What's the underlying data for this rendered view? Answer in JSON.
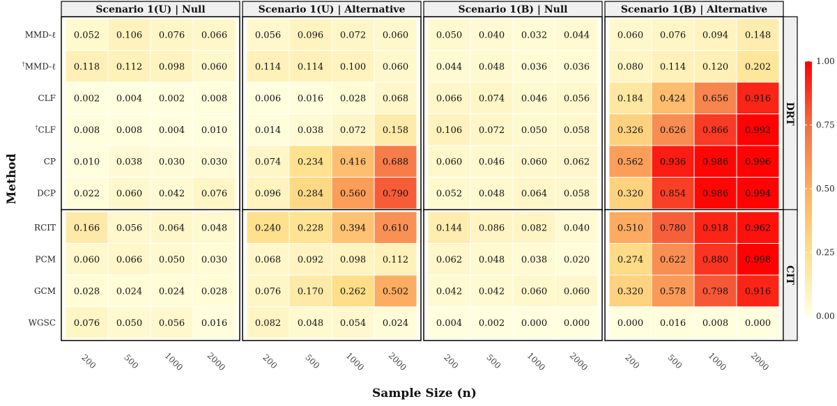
{
  "chart_data": {
    "type": "heatmap",
    "xlabel": "Sample Size (n)",
    "ylabel": "Method",
    "columns": [
      "200",
      "500",
      "1000",
      "2000"
    ],
    "panels": [
      {
        "title": "Scenario 1(U)  |  Null"
      },
      {
        "title": "Scenario 1(U)  |  Alternative"
      },
      {
        "title": "Scenario 1(B)  |  Null"
      },
      {
        "title": "Scenario 1(B)  |  Alternative"
      }
    ],
    "groups": [
      {
        "name": "DRT",
        "methods": [
          "MMD-ℓ",
          "†MMD-ℓ",
          "CLF",
          "†CLF",
          "CP",
          "DCP"
        ]
      },
      {
        "name": "CIT",
        "methods": [
          "RCIT",
          "PCM",
          "GCM",
          "WGSC"
        ]
      }
    ],
    "values": {
      "MMD-ℓ": [
        [
          0.052,
          0.106,
          0.076,
          0.066
        ],
        [
          0.056,
          0.096,
          0.072,
          0.06
        ],
        [
          0.05,
          0.04,
          0.032,
          0.044
        ],
        [
          0.06,
          0.076,
          0.094,
          0.148
        ]
      ],
      "†MMD-ℓ": [
        [
          0.118,
          0.112,
          0.098,
          0.06
        ],
        [
          0.114,
          0.114,
          0.1,
          0.06
        ],
        [
          0.044,
          0.048,
          0.036,
          0.036
        ],
        [
          0.08,
          0.114,
          0.12,
          0.202
        ]
      ],
      "CLF": [
        [
          0.002,
          0.004,
          0.002,
          0.008
        ],
        [
          0.006,
          0.016,
          0.028,
          0.068
        ],
        [
          0.066,
          0.074,
          0.046,
          0.056
        ],
        [
          0.184,
          0.424,
          0.656,
          0.916
        ]
      ],
      "†CLF": [
        [
          0.008,
          0.008,
          0.004,
          0.01
        ],
        [
          0.014,
          0.038,
          0.072,
          0.158
        ],
        [
          0.106,
          0.072,
          0.05,
          0.058
        ],
        [
          0.326,
          0.626,
          0.866,
          0.992
        ]
      ],
      "CP": [
        [
          0.01,
          0.038,
          0.03,
          0.03
        ],
        [
          0.074,
          0.234,
          0.416,
          0.688
        ],
        [
          0.06,
          0.046,
          0.06,
          0.062
        ],
        [
          0.562,
          0.936,
          0.986,
          0.996
        ]
      ],
      "DCP": [
        [
          0.022,
          0.06,
          0.042,
          0.076
        ],
        [
          0.096,
          0.284,
          0.56,
          0.79
        ],
        [
          0.052,
          0.048,
          0.064,
          0.058
        ],
        [
          0.32,
          0.854,
          0.986,
          0.994
        ]
      ],
      "RCIT": [
        [
          0.166,
          0.056,
          0.064,
          0.048
        ],
        [
          0.24,
          0.228,
          0.394,
          0.61
        ],
        [
          0.144,
          0.086,
          0.082,
          0.04
        ],
        [
          0.51,
          0.78,
          0.918,
          0.962
        ]
      ],
      "PCM": [
        [
          0.06,
          0.066,
          0.05,
          0.03
        ],
        [
          0.068,
          0.092,
          0.098,
          0.112
        ],
        [
          0.062,
          0.048,
          0.038,
          0.02
        ],
        [
          0.274,
          0.622,
          0.88,
          0.998
        ]
      ],
      "GCM": [
        [
          0.028,
          0.024,
          0.024,
          0.028
        ],
        [
          0.076,
          0.17,
          0.262,
          0.502
        ],
        [
          0.042,
          0.042,
          0.06,
          0.06
        ],
        [
          0.32,
          0.578,
          0.798,
          0.916
        ]
      ],
      "WGSC": [
        [
          0.076,
          0.05,
          0.056,
          0.016
        ],
        [
          0.082,
          0.048,
          0.054,
          0.024
        ],
        [
          0.004,
          0.002,
          0.0,
          0.0
        ],
        [
          0.0,
          0.016,
          0.008,
          0.0
        ]
      ]
    },
    "colorbar": {
      "range": [
        0,
        1
      ],
      "ticks": [
        "0.00",
        "0.25",
        "0.50",
        "0.75",
        "1.00"
      ],
      "colors": [
        "#ffffe0",
        "#fee08b",
        "#fdae61",
        "#f46d43",
        "#ff0000"
      ]
    }
  }
}
